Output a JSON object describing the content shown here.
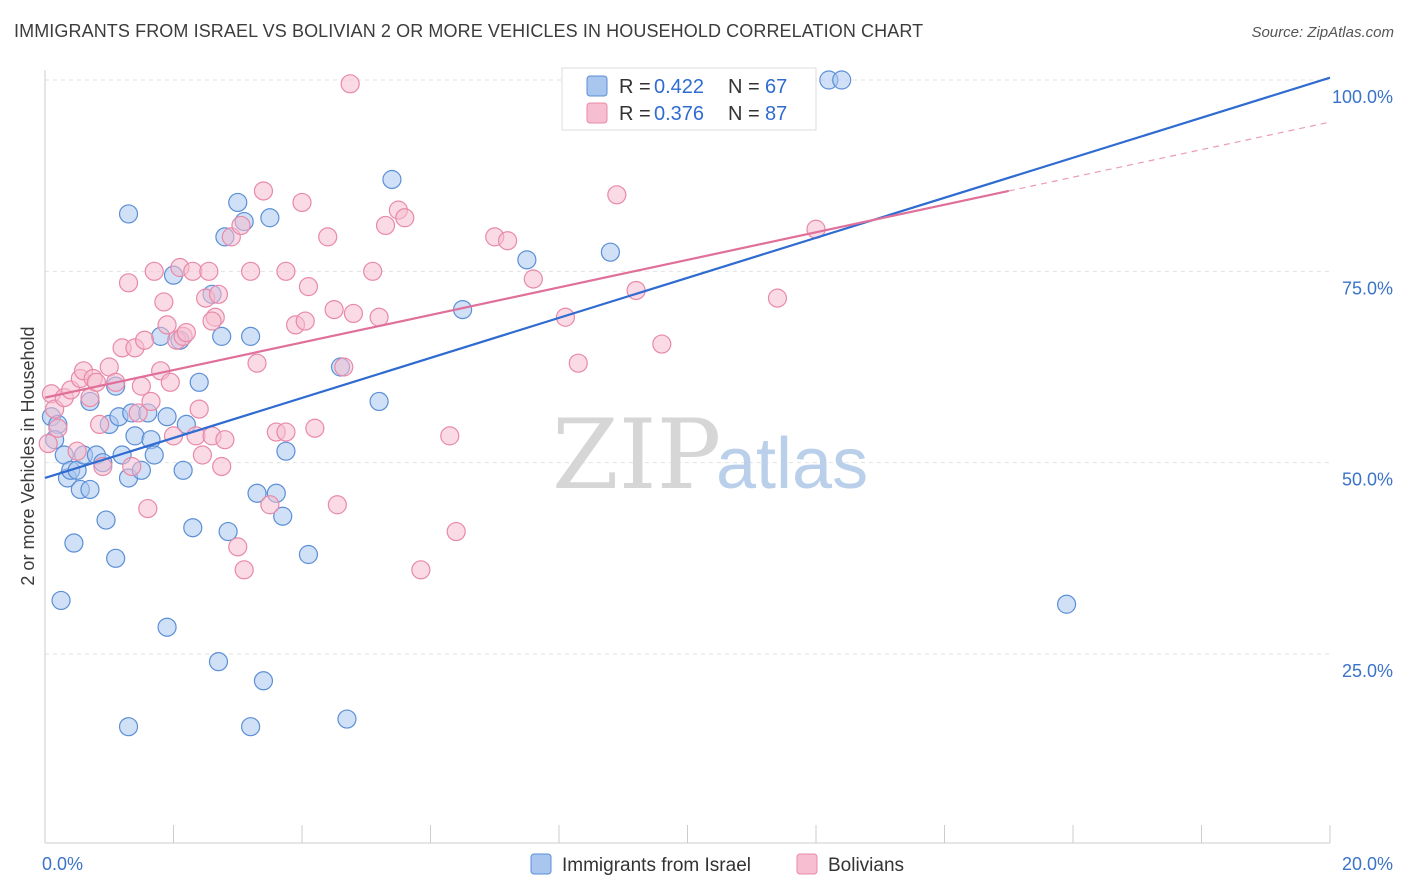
{
  "title": "IMMIGRANTS FROM ISRAEL VS BOLIVIAN 2 OR MORE VEHICLES IN HOUSEHOLD CORRELATION CHART",
  "source": "Source: ZipAtlas.com",
  "watermark": {
    "zip": "ZIP",
    "atlas": "atlas"
  },
  "colors": {
    "israel_fill": "#a9c6ee",
    "israel_stroke": "#5b8fd6",
    "israel_line": "#2f6bd0",
    "bolivian_fill": "#f6bed0",
    "bolivian_stroke": "#e889a8",
    "bolivian_line": "#e0709a",
    "grid": "#e2e2e2",
    "tick_text": "#3a73c8"
  },
  "legend": {
    "r_label": "R =",
    "n_label": "N =",
    "israel": {
      "r": "0.422",
      "n": "67"
    },
    "bolivian": {
      "r": "0.376",
      "n": "87"
    }
  },
  "bottom_legend": {
    "israel": "Immigrants from Israel",
    "bolivian": "Bolivians"
  },
  "chart_data": {
    "type": "scatter",
    "title": "IMMIGRANTS FROM ISRAEL VS BOLIVIAN 2 OR MORE VEHICLES IN HOUSEHOLD CORRELATION CHART",
    "xlabel": "",
    "ylabel": "2 or more Vehicles in Household",
    "xlim": [
      0,
      20
    ],
    "ylim": [
      0,
      103
    ],
    "x_ticks": [
      "0.0%",
      "20.0%"
    ],
    "y_ticks": [
      "25.0%",
      "50.0%",
      "75.0%",
      "100.0%"
    ],
    "y_tick_values": [
      25,
      50,
      75,
      100
    ],
    "grid": true,
    "legend_position": "top-center",
    "series": [
      {
        "name": "Immigrants from Israel",
        "r": 0.422,
        "n": 67,
        "trend": {
          "x": [
            0,
            20
          ],
          "y": [
            48,
            100.3
          ]
        },
        "points": [
          [
            0.1,
            56
          ],
          [
            0.2,
            55
          ],
          [
            0.15,
            53
          ],
          [
            0.25,
            32
          ],
          [
            0.3,
            51
          ],
          [
            0.35,
            48
          ],
          [
            0.4,
            49
          ],
          [
            0.45,
            39.5
          ],
          [
            0.5,
            49
          ],
          [
            0.55,
            46.5
          ],
          [
            0.6,
            51
          ],
          [
            0.7,
            58
          ],
          [
            0.8,
            51
          ],
          [
            0.9,
            50
          ],
          [
            0.95,
            42.5
          ],
          [
            1.0,
            55
          ],
          [
            1.1,
            60
          ],
          [
            1.15,
            56
          ],
          [
            1.2,
            51
          ],
          [
            1.3,
            48
          ],
          [
            1.35,
            56.5
          ],
          [
            1.4,
            53.5
          ],
          [
            1.5,
            49
          ],
          [
            1.6,
            56.5
          ],
          [
            1.65,
            53
          ],
          [
            1.7,
            51
          ],
          [
            1.8,
            66.5
          ],
          [
            1.9,
            56
          ],
          [
            2.0,
            74.5
          ],
          [
            2.1,
            66
          ],
          [
            2.15,
            49
          ],
          [
            2.2,
            55
          ],
          [
            2.3,
            41.5
          ],
          [
            2.4,
            60.5
          ],
          [
            2.6,
            72
          ],
          [
            2.7,
            24
          ],
          [
            2.75,
            66.5
          ],
          [
            2.8,
            79.5
          ],
          [
            2.85,
            41
          ],
          [
            3.0,
            84
          ],
          [
            3.1,
            81.5
          ],
          [
            3.2,
            66.5
          ],
          [
            3.3,
            46
          ],
          [
            3.4,
            21.5
          ],
          [
            3.5,
            82
          ],
          [
            3.6,
            46
          ],
          [
            3.7,
            43
          ],
          [
            3.75,
            51.5
          ],
          [
            4.1,
            38
          ],
          [
            4.6,
            62.5
          ],
          [
            4.7,
            16.5
          ],
          [
            5.2,
            58
          ],
          [
            5.4,
            87
          ],
          [
            1.3,
            82.5
          ],
          [
            1.9,
            28.5
          ],
          [
            1.3,
            15.5
          ],
          [
            3.2,
            15.5
          ],
          [
            6.5,
            70
          ],
          [
            7.5,
            76.5
          ],
          [
            8.8,
            77.5
          ],
          [
            10.4,
            100
          ],
          [
            11.2,
            100
          ],
          [
            12.2,
            100
          ],
          [
            12.4,
            100
          ],
          [
            15.9,
            31.5
          ],
          [
            0.7,
            46.5
          ],
          [
            1.1,
            37.5
          ]
        ]
      },
      {
        "name": "Bolivians",
        "r": 0.376,
        "n": 87,
        "trend": {
          "x": [
            0,
            15
          ],
          "y": [
            58.5,
            85.5
          ]
        },
        "trend_dashed": {
          "x": [
            15,
            20
          ],
          "y": [
            85.5,
            94.5
          ]
        },
        "points": [
          [
            0.05,
            52.5
          ],
          [
            0.1,
            59
          ],
          [
            0.15,
            57
          ],
          [
            0.2,
            54.5
          ],
          [
            0.3,
            58.5
          ],
          [
            0.4,
            59.5
          ],
          [
            0.5,
            51.5
          ],
          [
            0.55,
            61
          ],
          [
            0.6,
            62
          ],
          [
            0.7,
            58.5
          ],
          [
            0.75,
            61
          ],
          [
            0.8,
            60.5
          ],
          [
            0.85,
            55
          ],
          [
            0.9,
            49.5
          ],
          [
            1.0,
            62.5
          ],
          [
            1.1,
            60.5
          ],
          [
            1.2,
            65
          ],
          [
            1.3,
            73.5
          ],
          [
            1.4,
            65
          ],
          [
            1.45,
            56.5
          ],
          [
            1.5,
            60
          ],
          [
            1.55,
            66
          ],
          [
            1.6,
            44
          ],
          [
            1.65,
            58
          ],
          [
            1.7,
            75
          ],
          [
            1.8,
            62
          ],
          [
            1.85,
            71
          ],
          [
            1.9,
            68
          ],
          [
            1.95,
            60.5
          ],
          [
            2.0,
            53.5
          ],
          [
            2.05,
            66
          ],
          [
            2.1,
            75.5
          ],
          [
            2.15,
            66.5
          ],
          [
            2.2,
            67
          ],
          [
            2.3,
            75
          ],
          [
            2.35,
            53.5
          ],
          [
            2.4,
            57
          ],
          [
            2.45,
            51
          ],
          [
            2.5,
            71.5
          ],
          [
            2.55,
            75
          ],
          [
            2.6,
            53.5
          ],
          [
            2.65,
            69
          ],
          [
            2.7,
            72
          ],
          [
            2.75,
            49.5
          ],
          [
            2.8,
            53
          ],
          [
            2.9,
            79.5
          ],
          [
            3.0,
            39
          ],
          [
            3.05,
            81
          ],
          [
            3.1,
            36
          ],
          [
            3.2,
            75
          ],
          [
            3.3,
            63
          ],
          [
            3.4,
            85.5
          ],
          [
            3.5,
            44.5
          ],
          [
            3.6,
            54
          ],
          [
            3.75,
            75
          ],
          [
            3.9,
            68
          ],
          [
            4.0,
            84
          ],
          [
            4.05,
            68.5
          ],
          [
            4.1,
            73
          ],
          [
            4.2,
            54.5
          ],
          [
            4.4,
            79.5
          ],
          [
            4.5,
            70
          ],
          [
            4.55,
            44.5
          ],
          [
            4.65,
            62.5
          ],
          [
            4.8,
            69.5
          ],
          [
            5.1,
            75
          ],
          [
            5.2,
            69
          ],
          [
            5.3,
            81
          ],
          [
            5.5,
            83
          ],
          [
            5.6,
            82
          ],
          [
            5.85,
            36
          ],
          [
            6.3,
            53.5
          ],
          [
            6.4,
            41
          ],
          [
            7.0,
            79.5
          ],
          [
            7.2,
            79
          ],
          [
            7.6,
            74
          ],
          [
            8.1,
            69
          ],
          [
            8.3,
            63
          ],
          [
            8.9,
            85
          ],
          [
            9.2,
            72.5
          ],
          [
            9.6,
            65.5
          ],
          [
            11.4,
            71.5
          ],
          [
            12.0,
            80.5
          ],
          [
            4.75,
            99.5
          ],
          [
            2.6,
            68.5
          ],
          [
            1.35,
            49.5
          ],
          [
            3.75,
            54
          ]
        ]
      }
    ]
  }
}
